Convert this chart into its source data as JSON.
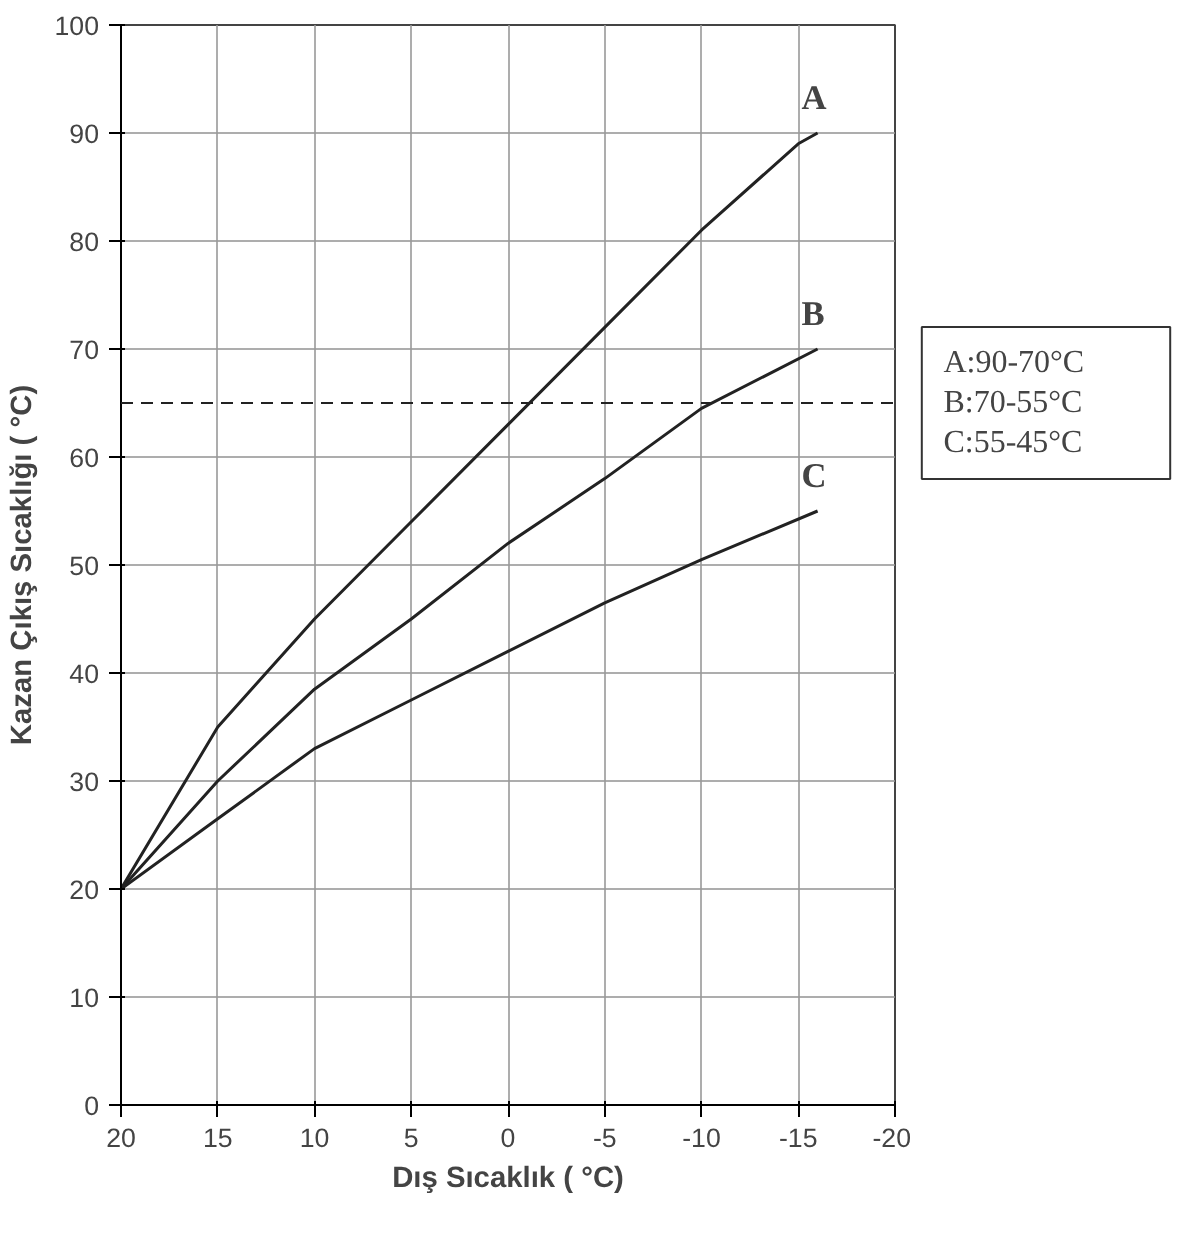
{
  "chart_data": {
    "type": "line",
    "xlabel": "Dış Sıcaklık ( °C)",
    "ylabel": "Kazan Çıkış Sıcaklığı ( °C)",
    "xlim": [
      20,
      -20
    ],
    "ylim": [
      0,
      100
    ],
    "xticks": [
      20,
      15,
      10,
      5,
      0,
      -5,
      -10,
      -15,
      -20
    ],
    "yticks": [
      0,
      10,
      20,
      30,
      40,
      50,
      60,
      70,
      80,
      90,
      100
    ],
    "grid": true,
    "legend": false,
    "line_style": "solid",
    "series": [
      {
        "name": "A",
        "color": "#222222",
        "x": [
          20,
          15,
          10,
          5,
          0,
          -5,
          -10,
          -15,
          -16
        ],
        "values": [
          20,
          35,
          45,
          54,
          63,
          72,
          81,
          89,
          90
        ]
      },
      {
        "name": "B",
        "color": "#222222",
        "x": [
          20,
          15,
          10,
          5,
          0,
          -5,
          -10,
          -16
        ],
        "values": [
          20,
          30,
          38.5,
          45,
          52,
          58,
          64.5,
          70
        ]
      },
      {
        "name": "C",
        "color": "#222222",
        "x": [
          20,
          15,
          10,
          5,
          0,
          -5,
          -10,
          -16
        ],
        "values": [
          20,
          26.5,
          33,
          37.5,
          42,
          46.5,
          50.5,
          55
        ]
      }
    ],
    "ref_lines": [
      {
        "axis": "y",
        "value": 65,
        "color": "#222222",
        "line_style": "dashed"
      }
    ],
    "annotations": [
      "A:90-70°C",
      "B:70-55°C",
      "C:55-45°C"
    ]
  }
}
